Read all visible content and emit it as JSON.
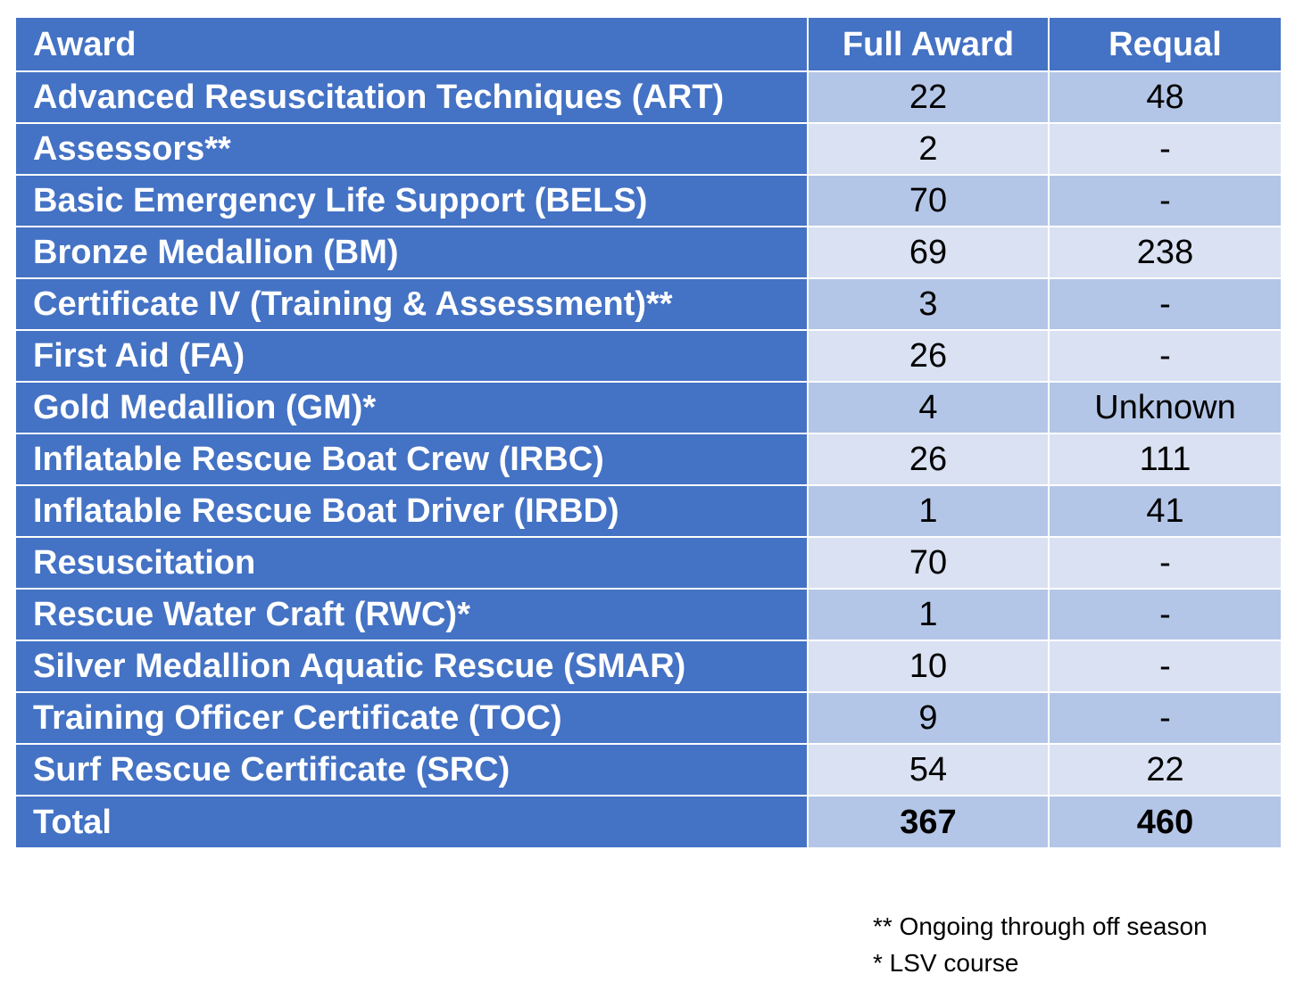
{
  "table": {
    "headers": {
      "award": "Award",
      "full_award": "Full Award",
      "requal": "Requal"
    },
    "rows": [
      {
        "award": "Advanced Resuscitation Techniques (ART)",
        "full_award": "22",
        "requal": "48"
      },
      {
        "award": "Assessors**",
        "full_award": "2",
        "requal": "-"
      },
      {
        "award": "Basic Emergency Life Support (BELS)",
        "full_award": "70",
        "requal": "-"
      },
      {
        "award": "Bronze Medallion (BM)",
        "full_award": "69",
        "requal": "238"
      },
      {
        "award": "Certificate IV (Training & Assessment)**",
        "full_award": "3",
        "requal": "-"
      },
      {
        "award": "First Aid (FA)",
        "full_award": "26",
        "requal": "-"
      },
      {
        "award": "Gold Medallion (GM)*",
        "full_award": "4",
        "requal": "Unknown"
      },
      {
        "award": "Inflatable Rescue Boat Crew (IRBC)",
        "full_award": "26",
        "requal": "111"
      },
      {
        "award": "Inflatable Rescue Boat Driver (IRBD)",
        "full_award": "1",
        "requal": "41"
      },
      {
        "award": "Resuscitation",
        "full_award": "70",
        "requal": "-"
      },
      {
        "award": "Rescue Water Craft (RWC)*",
        "full_award": "1",
        "requal": "-"
      },
      {
        "award": "Silver Medallion Aquatic Rescue (SMAR)",
        "full_award": "10",
        "requal": "-"
      },
      {
        "award": "Training Officer Certificate (TOC)",
        "full_award": "9",
        "requal": "-"
      },
      {
        "award": "Surf Rescue Certificate (SRC)",
        "full_award": "54",
        "requal": "22"
      }
    ],
    "total": {
      "label": "Total",
      "full_award": "367",
      "requal": "460"
    }
  },
  "notes": {
    "double_asterisk": "** Ongoing through off season",
    "single_asterisk": "* LSV course"
  },
  "colors": {
    "header_blue": "#4472c4",
    "band_dark": "#b4c6e7",
    "band_light": "#d9e1f2",
    "white": "#ffffff"
  }
}
